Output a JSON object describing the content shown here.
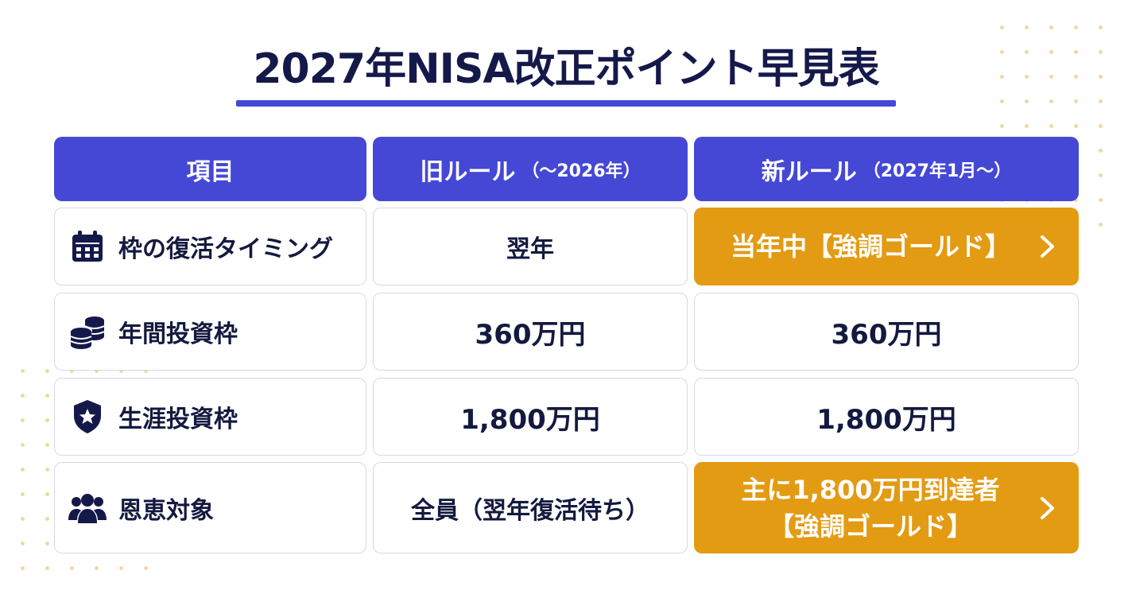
{
  "title": "2027年NISA改正ポイント早見表",
  "headers": {
    "item": "項目",
    "old_main": "旧ルール",
    "old_sub": "（〜2026年）",
    "new_main": "新ルール",
    "new_sub": "（2027年1月〜）"
  },
  "rows": [
    {
      "label": "枠の復活タイミング",
      "icon": "calendar-icon",
      "old": "翌年",
      "new_line1": "当年中【強調ゴールド】",
      "new_line2": ""
    },
    {
      "label": "年間投資枠",
      "icon": "coins-icon",
      "old": "360万円",
      "new_line1": "360万円",
      "new_line2": ""
    },
    {
      "label": "生涯投資枠",
      "icon": "shield-star-icon",
      "old": "1,800万円",
      "new_line1": "1,800万円",
      "new_line2": ""
    },
    {
      "label": "恩恵対象",
      "icon": "people-icon",
      "old": "全員（翌年復活待ち）",
      "new_line1": "主に1,800万円到達者",
      "new_line2": "【強調ゴールド】"
    }
  ],
  "colors": {
    "header": "#4548d4",
    "gold": "#e39b13",
    "navy": "#14193f"
  }
}
